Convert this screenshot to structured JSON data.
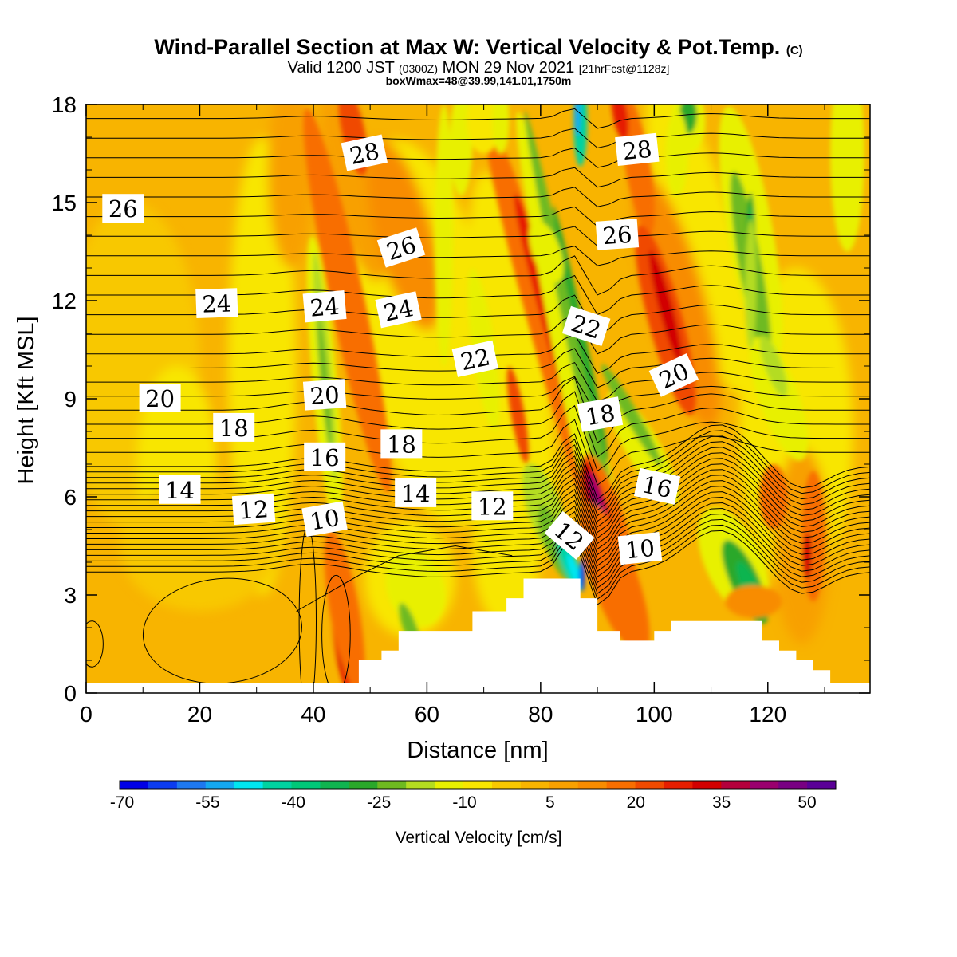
{
  "chart_data": {
    "type": "heatmap",
    "title": "Wind-Parallel Section at Max W: Vertical Velocity & Pot.Temp.",
    "title_suffix": "(C)",
    "subtitle_a": "Valid 1200 JST",
    "subtitle_b": "(0300Z)",
    "subtitle_c": "MON 29 Nov 2021",
    "subtitle_d": "[21hrFcst@1128z]",
    "subtitle2": "boxWmax=48@39.99,141.01,1750m",
    "xlabel": "Distance [nm]",
    "ylabel": "Height [Kft MSL]",
    "xlim": [
      0,
      138
    ],
    "ylim": [
      0,
      18
    ],
    "x_ticks": [
      "0",
      "20",
      "40",
      "60",
      "80",
      "100",
      "120"
    ],
    "y_ticks": [
      "0",
      "3",
      "6",
      "9",
      "12",
      "15",
      "18"
    ],
    "colorbar": {
      "label": "Vertical Velocity [cm/s]",
      "tick_labels": [
        "-70",
        "-55",
        "-40",
        "-25",
        "-10",
        "5",
        "20",
        "35",
        "50"
      ],
      "colors": [
        "#0000e6",
        "#0c3cf0",
        "#1e78f0",
        "#14a8f0",
        "#00e6f0",
        "#00d2a0",
        "#00c878",
        "#10b450",
        "#2aa82a",
        "#6eba20",
        "#b4dc20",
        "#e8f000",
        "#f8e600",
        "#f8c800",
        "#f8b400",
        "#f8a000",
        "#f88c00",
        "#f86e00",
        "#f04a00",
        "#e61e00",
        "#d20000",
        "#b4003c",
        "#9a006e",
        "#780082",
        "#5a0096"
      ]
    },
    "theta_contour_labels": [
      {
        "text": "28",
        "x": 49,
        "y": 16.5
      },
      {
        "text": "28",
        "x": 97,
        "y": 16.6
      },
      {
        "text": "26",
        "x": 6.5,
        "y": 14.8
      },
      {
        "text": "26",
        "x": 55.5,
        "y": 13.6
      },
      {
        "text": "26",
        "x": 93.5,
        "y": 14.0
      },
      {
        "text": "24",
        "x": 23,
        "y": 11.9
      },
      {
        "text": "24",
        "x": 42,
        "y": 11.8
      },
      {
        "text": "24",
        "x": 55,
        "y": 11.7
      },
      {
        "text": "22",
        "x": 68.5,
        "y": 10.2
      },
      {
        "text": "22",
        "x": 88,
        "y": 11.2
      },
      {
        "text": "20",
        "x": 13,
        "y": 9.0
      },
      {
        "text": "20",
        "x": 42,
        "y": 9.1
      },
      {
        "text": "20",
        "x": 103.5,
        "y": 9.7
      },
      {
        "text": "18",
        "x": 26,
        "y": 8.1
      },
      {
        "text": "18",
        "x": 55.5,
        "y": 7.6
      },
      {
        "text": "18",
        "x": 90.5,
        "y": 8.5
      },
      {
        "text": "16",
        "x": 42,
        "y": 7.2
      },
      {
        "text": "16",
        "x": 100.5,
        "y": 6.3
      },
      {
        "text": "14",
        "x": 16.5,
        "y": 6.2
      },
      {
        "text": "14",
        "x": 58,
        "y": 6.1
      },
      {
        "text": "12",
        "x": 29.5,
        "y": 5.6
      },
      {
        "text": "12",
        "x": 71.5,
        "y": 5.7
      },
      {
        "text": "12",
        "x": 85,
        "y": 4.8
      },
      {
        "text": "10",
        "x": 42,
        "y": 5.3
      },
      {
        "text": "10",
        "x": 97.5,
        "y": 4.4
      }
    ],
    "terrain": [
      [
        0,
        0.3
      ],
      [
        48,
        0.3
      ],
      [
        48,
        1.0
      ],
      [
        52,
        1.0
      ],
      [
        52,
        1.3
      ],
      [
        55,
        1.3
      ],
      [
        55,
        1.9
      ],
      [
        68,
        1.9
      ],
      [
        68,
        2.5
      ],
      [
        74,
        2.5
      ],
      [
        74,
        2.9
      ],
      [
        77,
        2.9
      ],
      [
        77,
        3.5
      ],
      [
        87,
        3.5
      ],
      [
        87,
        2.9
      ],
      [
        90,
        2.9
      ],
      [
        90,
        1.9
      ],
      [
        94,
        1.9
      ],
      [
        94,
        1.6
      ],
      [
        100,
        1.6
      ],
      [
        100,
        1.9
      ],
      [
        103,
        1.9
      ],
      [
        103,
        2.2
      ],
      [
        119,
        2.2
      ],
      [
        119,
        1.6
      ],
      [
        122,
        1.6
      ],
      [
        122,
        1.3
      ],
      [
        125,
        1.3
      ],
      [
        125,
        1.0
      ],
      [
        128,
        1.0
      ],
      [
        128,
        0.7
      ],
      [
        131,
        0.7
      ],
      [
        131,
        0.3
      ],
      [
        138,
        0.3
      ]
    ]
  }
}
